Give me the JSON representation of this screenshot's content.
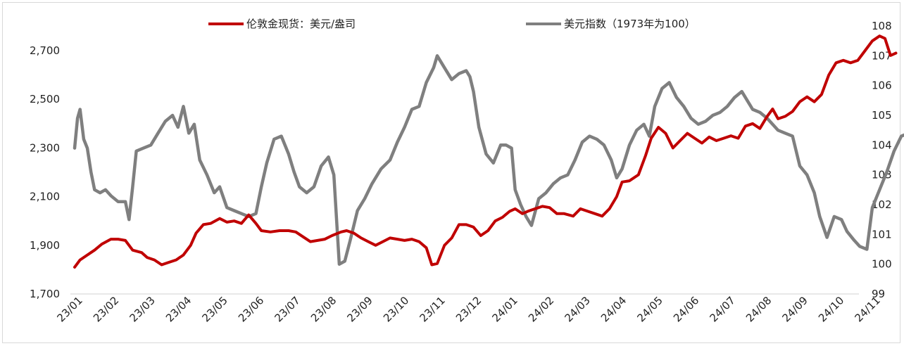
{
  "chart_data": {
    "type": "line",
    "title": "",
    "xlabel": "",
    "ylabel": "",
    "y2label": "",
    "x_ticks": [
      "23/01",
      "23/02",
      "23/03",
      "23/04",
      "23/05",
      "23/06",
      "23/07",
      "23/08",
      "23/09",
      "23/10",
      "23/11",
      "23/12",
      "24/01",
      "24/02",
      "24/03",
      "24/04",
      "24/05",
      "24/06",
      "24/07",
      "24/08",
      "24/09",
      "24/10",
      "24/11"
    ],
    "y_left": {
      "ticks": [
        "1,700",
        "1,900",
        "2,100",
        "2,300",
        "2,500",
        "2,700"
      ],
      "min": 1700,
      "max": 2700
    },
    "y_right": {
      "ticks": [
        "99",
        "100",
        "101",
        "102",
        "103",
        "104",
        "105",
        "106",
        "107",
        "108"
      ],
      "min": 99,
      "max": 108
    },
    "legend_position": "top",
    "grid": false,
    "series": [
      {
        "name": "伦敦金现货：美元/盎司",
        "axis": "left",
        "color": "#c00000",
        "points": [
          [
            0.0,
            1810
          ],
          [
            0.15,
            1840
          ],
          [
            0.35,
            1860
          ],
          [
            0.55,
            1880
          ],
          [
            0.75,
            1905
          ],
          [
            1.0,
            1925
          ],
          [
            1.2,
            1925
          ],
          [
            1.4,
            1920
          ],
          [
            1.6,
            1880
          ],
          [
            1.85,
            1870
          ],
          [
            2.0,
            1850
          ],
          [
            2.2,
            1840
          ],
          [
            2.4,
            1820
          ],
          [
            2.6,
            1830
          ],
          [
            2.8,
            1840
          ],
          [
            3.0,
            1860
          ],
          [
            3.2,
            1900
          ],
          [
            3.35,
            1950
          ],
          [
            3.55,
            1985
          ],
          [
            3.75,
            1990
          ],
          [
            4.0,
            2010
          ],
          [
            4.2,
            1995
          ],
          [
            4.4,
            2000
          ],
          [
            4.6,
            1990
          ],
          [
            4.8,
            2025
          ],
          [
            5.0,
            1990
          ],
          [
            5.15,
            1960
          ],
          [
            5.4,
            1955
          ],
          [
            5.65,
            1960
          ],
          [
            5.9,
            1960
          ],
          [
            6.1,
            1955
          ],
          [
            6.3,
            1935
          ],
          [
            6.5,
            1915
          ],
          [
            6.7,
            1920
          ],
          [
            6.9,
            1925
          ],
          [
            7.1,
            1940
          ],
          [
            7.35,
            1955
          ],
          [
            7.5,
            1960
          ],
          [
            7.7,
            1950
          ],
          [
            7.9,
            1930
          ],
          [
            8.1,
            1915
          ],
          [
            8.3,
            1900
          ],
          [
            8.5,
            1915
          ],
          [
            8.7,
            1930
          ],
          [
            8.9,
            1925
          ],
          [
            9.1,
            1920
          ],
          [
            9.3,
            1925
          ],
          [
            9.5,
            1915
          ],
          [
            9.7,
            1890
          ],
          [
            9.85,
            1820
          ],
          [
            10.0,
            1825
          ],
          [
            10.2,
            1900
          ],
          [
            10.4,
            1930
          ],
          [
            10.6,
            1985
          ],
          [
            10.8,
            1985
          ],
          [
            11.0,
            1975
          ],
          [
            11.2,
            1940
          ],
          [
            11.4,
            1960
          ],
          [
            11.6,
            2000
          ],
          [
            11.8,
            2015
          ],
          [
            12.0,
            2040
          ],
          [
            12.15,
            2050
          ],
          [
            12.35,
            2030
          ],
          [
            12.5,
            2040
          ],
          [
            12.7,
            2050
          ],
          [
            12.9,
            2060
          ],
          [
            13.1,
            2055
          ],
          [
            13.3,
            2030
          ],
          [
            13.5,
            2030
          ],
          [
            13.75,
            2020
          ],
          [
            13.95,
            2050
          ],
          [
            14.15,
            2040
          ],
          [
            14.35,
            2030
          ],
          [
            14.55,
            2020
          ],
          [
            14.75,
            2050
          ],
          [
            14.95,
            2100
          ],
          [
            15.1,
            2160
          ],
          [
            15.3,
            2165
          ],
          [
            15.55,
            2190
          ],
          [
            15.75,
            2270
          ],
          [
            15.9,
            2340
          ],
          [
            16.1,
            2385
          ],
          [
            16.3,
            2360
          ],
          [
            16.5,
            2300
          ],
          [
            16.7,
            2330
          ],
          [
            16.9,
            2360
          ],
          [
            17.1,
            2340
          ],
          [
            17.3,
            2320
          ],
          [
            17.5,
            2345
          ],
          [
            17.7,
            2330
          ],
          [
            17.9,
            2340
          ],
          [
            18.1,
            2350
          ],
          [
            18.3,
            2340
          ],
          [
            18.5,
            2390
          ],
          [
            18.7,
            2400
          ],
          [
            18.9,
            2380
          ],
          [
            19.1,
            2430
          ],
          [
            19.25,
            2460
          ],
          [
            19.4,
            2420
          ],
          [
            19.6,
            2430
          ],
          [
            19.8,
            2450
          ],
          [
            20.0,
            2490
          ],
          [
            20.2,
            2510
          ],
          [
            20.4,
            2490
          ],
          [
            20.6,
            2520
          ],
          [
            20.8,
            2600
          ],
          [
            21.0,
            2650
          ],
          [
            21.2,
            2660
          ],
          [
            21.4,
            2650
          ],
          [
            21.6,
            2660
          ],
          [
            21.8,
            2700
          ],
          [
            22.0,
            2740
          ],
          [
            22.2,
            2760
          ],
          [
            22.35,
            2750
          ],
          [
            22.5,
            2680
          ],
          [
            22.65,
            2690
          ]
        ]
      },
      {
        "name": "美元指数（1973年为100）",
        "axis": "right",
        "color": "#7f7f7f",
        "points": [
          [
            0.0,
            103.9
          ],
          [
            0.08,
            104.9
          ],
          [
            0.15,
            105.2
          ],
          [
            0.25,
            104.2
          ],
          [
            0.35,
            103.9
          ],
          [
            0.45,
            103.1
          ],
          [
            0.55,
            102.5
          ],
          [
            0.7,
            102.4
          ],
          [
            0.85,
            102.5
          ],
          [
            1.0,
            102.3
          ],
          [
            1.2,
            102.1
          ],
          [
            1.4,
            102.1
          ],
          [
            1.5,
            101.5
          ],
          [
            1.6,
            102.6
          ],
          [
            1.7,
            103.8
          ],
          [
            1.9,
            103.9
          ],
          [
            2.1,
            104.0
          ],
          [
            2.3,
            104.4
          ],
          [
            2.5,
            104.8
          ],
          [
            2.7,
            105.0
          ],
          [
            2.85,
            104.6
          ],
          [
            3.0,
            105.3
          ],
          [
            3.15,
            104.4
          ],
          [
            3.3,
            104.7
          ],
          [
            3.45,
            103.5
          ],
          [
            3.65,
            103.0
          ],
          [
            3.85,
            102.4
          ],
          [
            4.0,
            102.6
          ],
          [
            4.2,
            101.9
          ],
          [
            4.4,
            101.8
          ],
          [
            4.6,
            101.7
          ],
          [
            4.8,
            101.6
          ],
          [
            5.0,
            101.7
          ],
          [
            5.15,
            102.6
          ],
          [
            5.3,
            103.4
          ],
          [
            5.5,
            104.2
          ],
          [
            5.7,
            104.3
          ],
          [
            5.9,
            103.7
          ],
          [
            6.05,
            103.1
          ],
          [
            6.2,
            102.6
          ],
          [
            6.4,
            102.4
          ],
          [
            6.6,
            102.6
          ],
          [
            6.8,
            103.3
          ],
          [
            7.0,
            103.6
          ],
          [
            7.15,
            103.0
          ],
          [
            7.3,
            100.0
          ],
          [
            7.45,
            100.1
          ],
          [
            7.6,
            100.8
          ],
          [
            7.8,
            101.8
          ],
          [
            8.0,
            102.2
          ],
          [
            8.2,
            102.7
          ],
          [
            8.45,
            103.2
          ],
          [
            8.7,
            103.5
          ],
          [
            8.9,
            104.1
          ],
          [
            9.1,
            104.6
          ],
          [
            9.3,
            105.2
          ],
          [
            9.5,
            105.3
          ],
          [
            9.7,
            106.1
          ],
          [
            9.9,
            106.6
          ],
          [
            10.0,
            107.0
          ],
          [
            10.2,
            106.6
          ],
          [
            10.4,
            106.2
          ],
          [
            10.6,
            106.4
          ],
          [
            10.8,
            106.5
          ],
          [
            10.9,
            106.3
          ],
          [
            11.0,
            105.8
          ],
          [
            11.15,
            104.6
          ],
          [
            11.35,
            103.7
          ],
          [
            11.55,
            103.4
          ],
          [
            11.75,
            104.0
          ],
          [
            11.9,
            104.0
          ],
          [
            12.05,
            103.9
          ],
          [
            12.15,
            102.5
          ],
          [
            12.3,
            102.0
          ],
          [
            12.45,
            101.6
          ],
          [
            12.6,
            101.3
          ],
          [
            12.8,
            102.2
          ],
          [
            13.0,
            102.4
          ],
          [
            13.2,
            102.7
          ],
          [
            13.4,
            102.9
          ],
          [
            13.6,
            103.0
          ],
          [
            13.8,
            103.5
          ],
          [
            14.0,
            104.1
          ],
          [
            14.2,
            104.3
          ],
          [
            14.4,
            104.2
          ],
          [
            14.6,
            104.0
          ],
          [
            14.8,
            103.5
          ],
          [
            14.95,
            102.9
          ],
          [
            15.1,
            103.2
          ],
          [
            15.3,
            104.0
          ],
          [
            15.5,
            104.5
          ],
          [
            15.7,
            104.7
          ],
          [
            15.85,
            104.3
          ],
          [
            16.0,
            105.3
          ],
          [
            16.2,
            105.9
          ],
          [
            16.4,
            106.1
          ],
          [
            16.6,
            105.6
          ],
          [
            16.8,
            105.3
          ],
          [
            17.0,
            104.9
          ],
          [
            17.2,
            104.7
          ],
          [
            17.4,
            104.8
          ],
          [
            17.6,
            105.0
          ],
          [
            17.8,
            105.1
          ],
          [
            18.0,
            105.3
          ],
          [
            18.2,
            105.6
          ],
          [
            18.4,
            105.8
          ],
          [
            18.55,
            105.5
          ],
          [
            18.7,
            105.2
          ],
          [
            18.9,
            105.1
          ],
          [
            19.1,
            104.9
          ],
          [
            19.25,
            104.7
          ],
          [
            19.4,
            104.5
          ],
          [
            19.6,
            104.4
          ],
          [
            19.8,
            104.3
          ],
          [
            20.0,
            103.3
          ],
          [
            20.2,
            103.0
          ],
          [
            20.4,
            102.4
          ],
          [
            20.55,
            101.6
          ],
          [
            20.75,
            100.9
          ],
          [
            20.95,
            101.6
          ],
          [
            21.15,
            101.5
          ],
          [
            21.3,
            101.1
          ],
          [
            21.5,
            100.8
          ],
          [
            21.65,
            100.6
          ],
          [
            21.85,
            100.5
          ],
          [
            22.0,
            101.9
          ],
          [
            22.2,
            102.5
          ],
          [
            22.4,
            103.1
          ],
          [
            22.6,
            103.8
          ],
          [
            22.8,
            104.3
          ],
          [
            23.0,
            104.4
          ],
          [
            23.15,
            104.0
          ],
          [
            23.3,
            103.4
          ],
          [
            23.45,
            105.1
          ],
          [
            23.5,
            104.9
          ]
        ]
      }
    ]
  }
}
